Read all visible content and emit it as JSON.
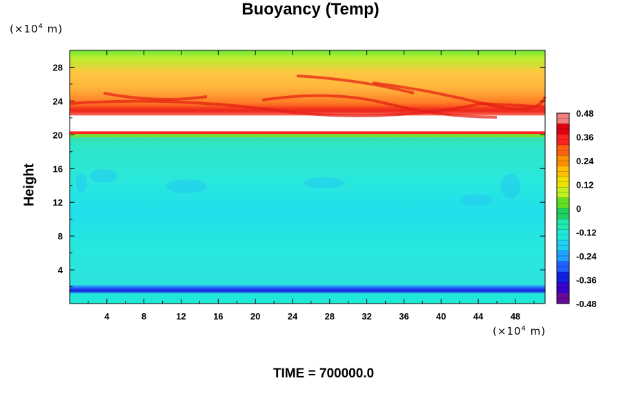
{
  "chart_data": {
    "type": "heatmap",
    "title": "Buoyancy (Temp)",
    "ylabel": "Height",
    "x_unit_prefix": "(×10",
    "x_unit_exp": "4",
    "x_unit_suffix": " m)",
    "y_unit_prefix": "(×10",
    "y_unit_exp": "4",
    "y_unit_suffix": " m)",
    "x_ticks": [
      "4",
      "8",
      "12",
      "16",
      "20",
      "24",
      "28",
      "32",
      "36",
      "40",
      "44",
      "48"
    ],
    "y_ticks": [
      "4",
      "8",
      "12",
      "16",
      "20",
      "24",
      "28"
    ],
    "xlim": [
      0,
      51.2
    ],
    "ylim": [
      0,
      30
    ],
    "colorbar_ticks": [
      "0.48",
      "0.36",
      "0.24",
      "0.12",
      "0",
      "-0.12",
      "-0.24",
      "-0.36",
      "-0.48"
    ],
    "colorbar_range": [
      -0.48,
      0.48
    ],
    "colorbar_colors": [
      "#6a0a9a",
      "#3a00cc",
      "#1020e0",
      "#2060ff",
      "#20a0ff",
      "#20d0f0",
      "#20e8d8",
      "#20e8b0",
      "#20d060",
      "#60e020",
      "#c0f020",
      "#f0e000",
      "#ffc000",
      "#ff9000",
      "#ff6010",
      "#ff2020",
      "#e00010",
      "#f08080"
    ],
    "bands": [
      {
        "from": 0.0,
        "to": 1.3,
        "value": -0.12
      },
      {
        "from": 1.3,
        "to": 1.6,
        "value": -0.3
      },
      {
        "from": 1.6,
        "to": 1.9,
        "value": -0.42
      },
      {
        "from": 1.9,
        "to": 19.7,
        "value": -0.13
      },
      {
        "from": 19.7,
        "to": 20.1,
        "value": 0.04
      },
      {
        "from": 20.1,
        "to": 20.4,
        "value": 0.36
      },
      {
        "from": 20.4,
        "to": 22.3,
        "value": null
      },
      {
        "from": 22.3,
        "to": 23.3,
        "value": 0.4
      },
      {
        "from": 23.3,
        "to": 25.5,
        "value": 0.26
      },
      {
        "from": 25.5,
        "to": 28.0,
        "value": 0.18
      },
      {
        "from": 28.0,
        "to": 30.0,
        "value": 0.04
      }
    ],
    "caption": "TIME = 700000.0"
  }
}
